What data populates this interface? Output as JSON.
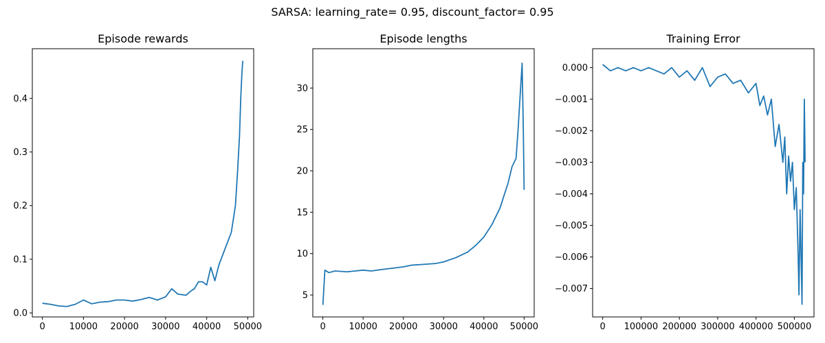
{
  "figure": {
    "suptitle": "SARSA: learning_rate= 0.95, discount_factor= 0.95",
    "line_color": "#1f77b4"
  },
  "chart_data": [
    {
      "type": "line",
      "title": "Episode rewards",
      "xlabel": "",
      "ylabel": "",
      "xlim": [
        -2450,
        51450
      ],
      "ylim": [
        -0.0075,
        0.4925
      ],
      "xticks": [
        0,
        10000,
        20000,
        30000,
        40000,
        50000
      ],
      "xtick_labels": [
        "0",
        "10000",
        "20000",
        "30000",
        "40000",
        "50000"
      ],
      "yticks": [
        0.0,
        0.1,
        0.2,
        0.3,
        0.4
      ],
      "ytick_labels": [
        "0.0",
        "0.1",
        "0.2",
        "0.3",
        "0.4"
      ],
      "grid": false,
      "series": [
        {
          "x": [
            0,
            2000,
            4000,
            6000,
            8000,
            10000,
            12000,
            14000,
            16000,
            18000,
            20000,
            22000,
            24000,
            26000,
            28000,
            30000,
            31500,
            33000,
            35000,
            36000,
            37000,
            38000,
            39000,
            40000,
            41000,
            42000,
            43000,
            44000,
            45000,
            46000,
            47000,
            47500,
            48000,
            48300,
            48600,
            48800
          ],
          "values": [
            0.018,
            0.016,
            0.013,
            0.012,
            0.016,
            0.024,
            0.017,
            0.02,
            0.021,
            0.024,
            0.024,
            0.022,
            0.025,
            0.029,
            0.024,
            0.03,
            0.045,
            0.035,
            0.033,
            0.04,
            0.045,
            0.058,
            0.058,
            0.052,
            0.085,
            0.06,
            0.09,
            0.11,
            0.13,
            0.15,
            0.2,
            0.26,
            0.33,
            0.4,
            0.45,
            0.47
          ]
        }
      ]
    },
    {
      "type": "line",
      "title": "Episode lengths",
      "xlabel": "",
      "ylabel": "",
      "xlim": [
        -2500,
        52500
      ],
      "ylim": [
        2.35,
        34.75
      ],
      "xticks": [
        0,
        10000,
        20000,
        30000,
        40000,
        50000
      ],
      "xtick_labels": [
        "0",
        "10000",
        "20000",
        "30000",
        "40000",
        "50000"
      ],
      "yticks": [
        5,
        10,
        15,
        20,
        25,
        30
      ],
      "ytick_labels": [
        "5",
        "10",
        "15",
        "20",
        "25",
        "30"
      ],
      "grid": false,
      "series": [
        {
          "x": [
            0,
            500,
            1500,
            3000,
            6000,
            8000,
            10000,
            12000,
            15000,
            20000,
            22000,
            25000,
            28000,
            30000,
            33000,
            36000,
            38000,
            40000,
            42000,
            44000,
            46000,
            47000,
            48000,
            48500,
            49000,
            49500,
            49800,
            50000
          ],
          "values": [
            3.8,
            8.0,
            7.7,
            7.9,
            7.8,
            7.9,
            8.0,
            7.9,
            8.1,
            8.4,
            8.6,
            8.7,
            8.8,
            9.0,
            9.5,
            10.2,
            11.0,
            12.0,
            13.5,
            15.5,
            18.5,
            20.5,
            21.5,
            25.0,
            29.0,
            33.0,
            25.0,
            17.7
          ]
        }
      ]
    },
    {
      "type": "line",
      "title": "Training Error",
      "xlabel": "",
      "ylabel": "",
      "xlim": [
        -26250,
        551250
      ],
      "ylim": [
        -0.0079,
        0.0006
      ],
      "xticks": [
        0,
        100000,
        200000,
        300000,
        400000,
        500000
      ],
      "xtick_labels": [
        "0",
        "100000",
        "200000",
        "300000",
        "400000",
        "500000"
      ],
      "yticks": [
        0.0,
        -0.001,
        -0.002,
        -0.003,
        -0.004,
        -0.005,
        -0.006,
        -0.007
      ],
      "ytick_labels": [
        "0.000",
        "−0.001",
        "−0.002",
        "−0.003",
        "−0.004",
        "−0.005",
        "−0.006",
        "−0.007"
      ],
      "grid": false,
      "series": [
        {
          "x": [
            0,
            20000,
            40000,
            60000,
            80000,
            100000,
            120000,
            140000,
            160000,
            180000,
            200000,
            220000,
            240000,
            260000,
            280000,
            300000,
            320000,
            340000,
            360000,
            380000,
            400000,
            410000,
            420000,
            430000,
            440000,
            450000,
            460000,
            470000,
            475000,
            480000,
            485000,
            490000,
            495000,
            500000,
            505000,
            510000,
            512000,
            515000,
            518000,
            520000,
            522000,
            524000,
            526000,
            528000
          ],
          "values": [
            0.0001,
            -0.0001,
            0.0,
            -0.0001,
            0.0,
            -0.0001,
            0.0,
            -0.0001,
            -0.0002,
            0.0,
            -0.0003,
            -0.0001,
            -0.0004,
            0.0,
            -0.0006,
            -0.0003,
            -0.0002,
            -0.0005,
            -0.0004,
            -0.0008,
            -0.0005,
            -0.0012,
            -0.0009,
            -0.0015,
            -0.001,
            -0.0025,
            -0.0018,
            -0.003,
            -0.0022,
            -0.004,
            -0.0028,
            -0.0036,
            -0.003,
            -0.0045,
            -0.0038,
            -0.006,
            -0.0072,
            -0.0045,
            -0.0062,
            -0.0075,
            -0.003,
            -0.004,
            -0.001,
            -0.003
          ]
        }
      ]
    }
  ]
}
